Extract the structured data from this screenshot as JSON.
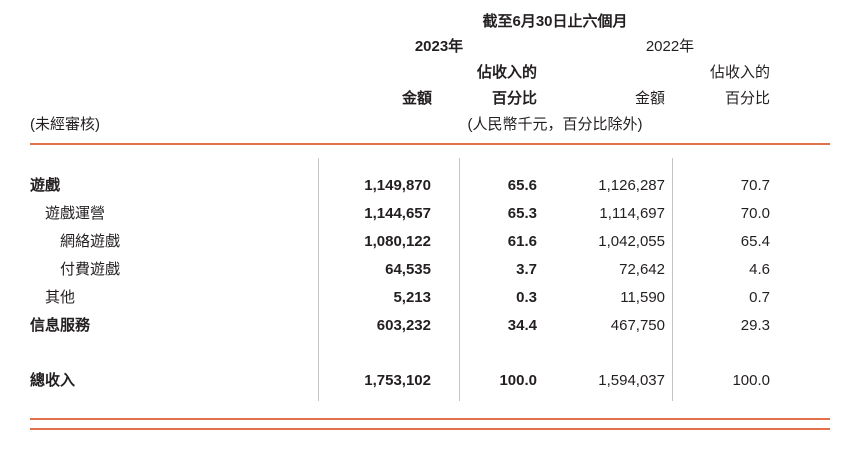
{
  "header": {
    "period": "截至6月30日止六個月",
    "year_2023": "2023年",
    "year_2022": "2022年",
    "pct_caption_2023": "佔收入的",
    "pct_caption_2022": "佔收入的",
    "amount_label_2023": "金額",
    "pct_label_2023": "百分比",
    "amount_label_2022": "金額",
    "pct_label_2022": "百分比",
    "unaudited": "(未經審核)",
    "units": "(人民幣千元，百分比除外)"
  },
  "rows": [
    {
      "label": "遊戲",
      "amount_2023": "1,149,870",
      "pct_2023": "65.6",
      "amount_2022": "1,126,287",
      "pct_2022": "70.7"
    },
    {
      "label": "遊戲運營",
      "amount_2023": "1,144,657",
      "pct_2023": "65.3",
      "amount_2022": "1,114,697",
      "pct_2022": "70.0"
    },
    {
      "label": "網絡遊戲",
      "amount_2023": "1,080,122",
      "pct_2023": "61.6",
      "amount_2022": "1,042,055",
      "pct_2022": "65.4"
    },
    {
      "label": "付費遊戲",
      "amount_2023": "64,535",
      "pct_2023": "3.7",
      "amount_2022": "72,642",
      "pct_2022": "4.6"
    },
    {
      "label": "其他",
      "amount_2023": "5,213",
      "pct_2023": "0.3",
      "amount_2022": "11,590",
      "pct_2022": "0.7"
    },
    {
      "label": "信息服務",
      "amount_2023": "603,232",
      "pct_2023": "34.4",
      "amount_2022": "467,750",
      "pct_2022": "29.3"
    }
  ],
  "total": {
    "label": "總收入",
    "amount_2023": "1,753,102",
    "pct_2023": "100.0",
    "amount_2022": "1,594,037",
    "pct_2022": "100.0"
  },
  "colors": {
    "accent": "#e0714b",
    "grid_line": "#c4c4c4",
    "text": "#231f20"
  }
}
